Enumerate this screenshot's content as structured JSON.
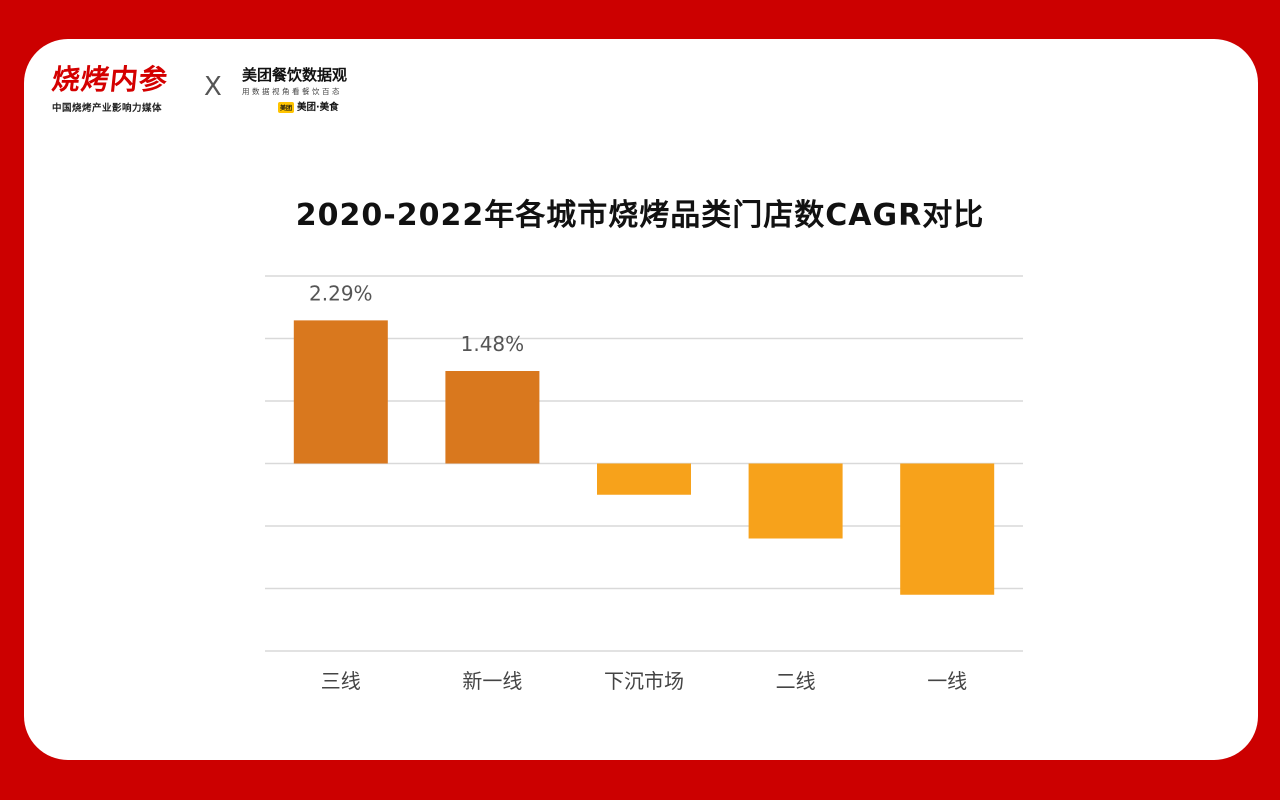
{
  "header": {
    "logo_main": "烧烤内参",
    "logo_tagline": "中国烧烤产业影响力媒体",
    "separator": "X",
    "partner_name": "美团餐饮数据观",
    "partner_tagline": "用数据视角看餐饮百态",
    "partner_badge": "美团",
    "partner_brand": "美团·美食"
  },
  "colors": {
    "background": "#cc0000",
    "positive_bar": "#d9781e",
    "negative_bar": "#f7a21b",
    "grid": "#d9d9d9"
  },
  "chart_data": {
    "type": "bar",
    "title": "2020-2022年各城市烧烤品类门店数CAGR对比",
    "categories": [
      "三线",
      "新一线",
      "下沉市场",
      "二线",
      "一线"
    ],
    "values": [
      2.29,
      1.48,
      -0.5,
      -1.2,
      -2.1
    ],
    "value_labels": [
      "2.29%",
      "1.48%",
      "",
      "",
      ""
    ],
    "ylim": [
      -3.0,
      3.0
    ],
    "grid": true,
    "legend": "none"
  }
}
